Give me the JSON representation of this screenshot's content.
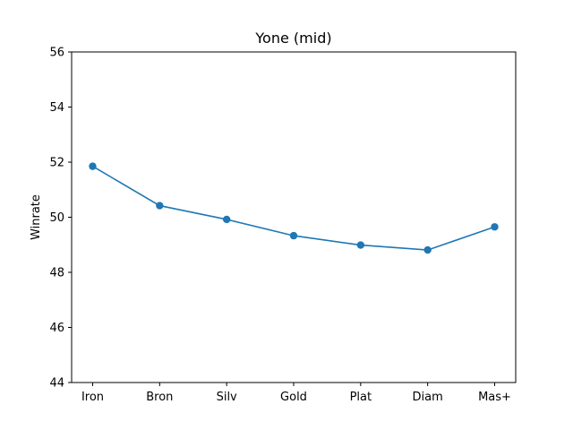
{
  "chart_data": {
    "type": "line",
    "title": "Yone (mid)",
    "xlabel": "",
    "ylabel": "Winrate",
    "categories": [
      "Iron",
      "Bron",
      "Silv",
      "Gold",
      "Plat",
      "Diam",
      "Mas+"
    ],
    "series": [
      {
        "values": [
          51.85,
          50.42,
          49.92,
          49.33,
          48.99,
          48.81,
          49.65
        ]
      }
    ],
    "ylim": [
      44,
      56
    ],
    "yticks": [
      44,
      46,
      48,
      50,
      52,
      54,
      56
    ],
    "grid": false,
    "colors": {
      "line": "#1f77b4",
      "marker": "#1f77b4",
      "axes": "#000000",
      "background": "#ffffff"
    }
  }
}
